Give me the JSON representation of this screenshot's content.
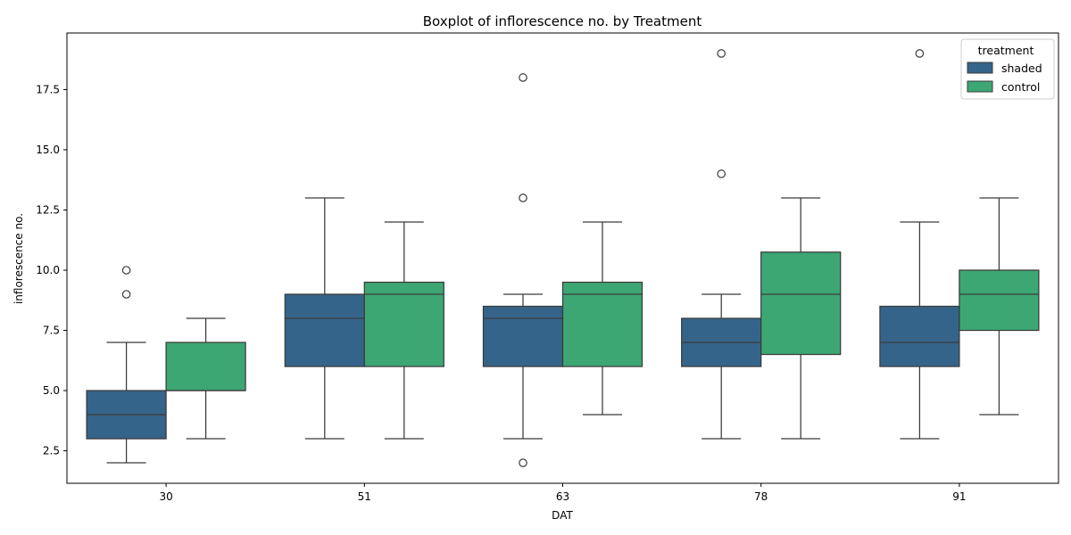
{
  "chart_data": {
    "type": "boxplot",
    "title": "Boxplot of inflorescence no. by Treatment",
    "xlabel": "DAT",
    "ylabel": "inflorescence no.",
    "categories": [
      "30",
      "51",
      "63",
      "78",
      "91"
    ],
    "ylim": [
      1.15,
      19.85
    ],
    "yticks": [
      2.5,
      5.0,
      7.5,
      10.0,
      12.5,
      15.0,
      17.5
    ],
    "ytick_labels": [
      "2.5",
      "5.0",
      "7.5",
      "10.0",
      "12.5",
      "15.0",
      "17.5"
    ],
    "grid": false,
    "legend": {
      "title": "treatment",
      "position": "top-right"
    },
    "series": [
      {
        "name": "shaded",
        "color": "#35648a",
        "boxes": [
          {
            "whisker_low": 2,
            "q1": 3,
            "median": 4,
            "q3": 5,
            "whisker_high": 7,
            "outliers": [
              9,
              10
            ]
          },
          {
            "whisker_low": 3,
            "q1": 6,
            "median": 8,
            "q3": 9,
            "whisker_high": 13,
            "outliers": []
          },
          {
            "whisker_low": 3,
            "q1": 6,
            "median": 8,
            "q3": 8.5,
            "whisker_high": 9,
            "outliers": [
              2,
              13,
              18
            ]
          },
          {
            "whisker_low": 3,
            "q1": 6,
            "median": 7,
            "q3": 8,
            "whisker_high": 9,
            "outliers": [
              14,
              19
            ]
          },
          {
            "whisker_low": 3,
            "q1": 6,
            "median": 7,
            "q3": 8.5,
            "whisker_high": 12,
            "outliers": [
              19
            ]
          }
        ]
      },
      {
        "name": "control",
        "color": "#3da774",
        "boxes": [
          {
            "whisker_low": 3,
            "q1": 5,
            "median": 5,
            "q3": 7,
            "whisker_high": 8,
            "outliers": []
          },
          {
            "whisker_low": 3,
            "q1": 6,
            "median": 9,
            "q3": 9.5,
            "whisker_high": 12,
            "outliers": []
          },
          {
            "whisker_low": 4,
            "q1": 6,
            "median": 9,
            "q3": 9.5,
            "whisker_high": 12,
            "outliers": []
          },
          {
            "whisker_low": 3,
            "q1": 6.5,
            "median": 9,
            "q3": 10.75,
            "whisker_high": 13,
            "outliers": []
          },
          {
            "whisker_low": 4,
            "q1": 7.5,
            "median": 9,
            "q3": 10,
            "whisker_high": 13,
            "outliers": []
          }
        ]
      }
    ]
  }
}
